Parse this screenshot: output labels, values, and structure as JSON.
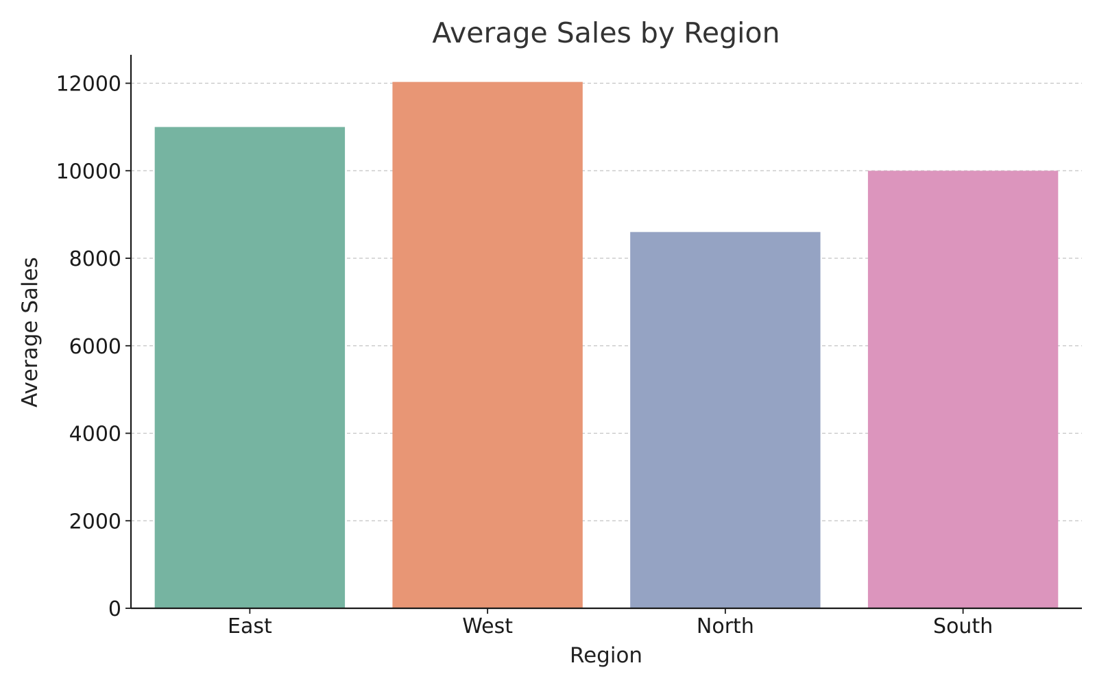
{
  "chart_data": {
    "type": "bar",
    "title": "Average Sales by Region",
    "xlabel": "Region",
    "ylabel": "Average Sales",
    "categories": [
      "East",
      "West",
      "North",
      "South"
    ],
    "values": [
      11000,
      12030,
      8600,
      10000
    ],
    "colors": [
      "#76b4a1",
      "#e89675",
      "#95a3c3",
      "#dc95bd"
    ],
    "ylim": [
      0,
      12650
    ],
    "yticks": [
      0,
      2000,
      4000,
      6000,
      8000,
      10000,
      12000
    ],
    "grid": "horizontal dashed"
  }
}
